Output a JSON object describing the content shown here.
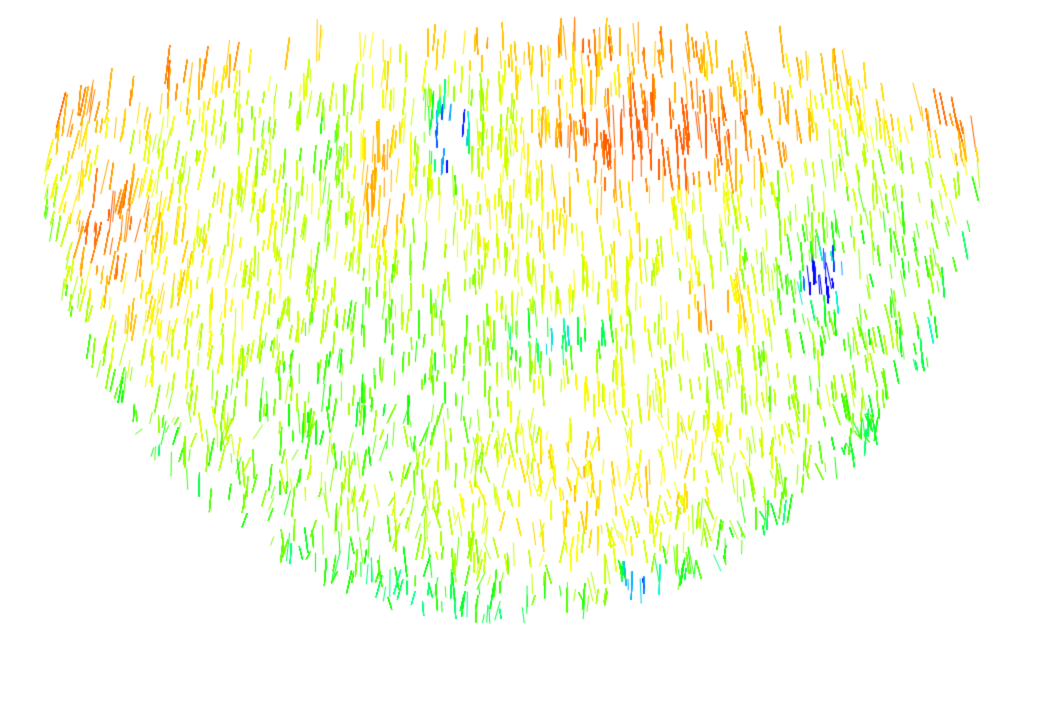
{
  "scene": {
    "subject": "fiber-orientation-bowl",
    "background_color": "#ffffff",
    "colormap": [
      "#0000ff",
      "#00aaff",
      "#00ffcc",
      "#00ff00",
      "#aaff00",
      "#ffff00",
      "#ffaa00",
      "#ff5a00"
    ],
    "dominant_colors": {
      "rim_band": "#ff7a00",
      "bowl_body": "#6cff00",
      "lower_edge": "#00ffb0",
      "septum_marks": "#0a35ff"
    },
    "interactive": false
  }
}
